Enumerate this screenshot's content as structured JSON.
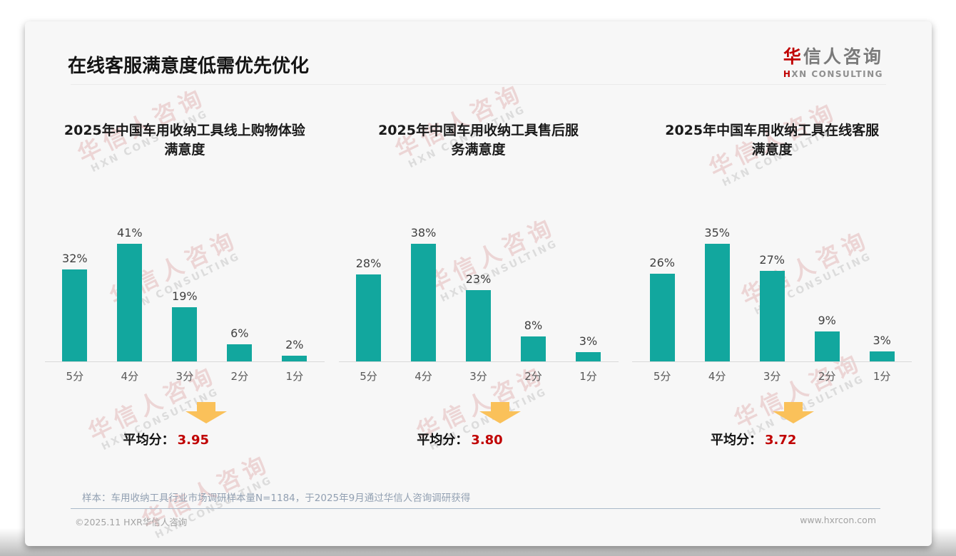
{
  "slide": {
    "title": "在线客服满意度低需优先优化",
    "logo": {
      "cn_accent": "华",
      "cn_rest": "信人咨询",
      "en_accent": "H",
      "en_rest": "XN CONSULTING"
    },
    "watermark": {
      "cn": "华信人咨询",
      "en": "HXN CONSULTING"
    },
    "avg_label": "平均分：",
    "sample_note": "样本：车用收纳工具行业市场调研样本量N=1184，于2025年9月通过华信人咨询调研获得",
    "footer_left": "©2025.11 HXR华信人咨询",
    "footer_right": "www.hxrcon.com"
  },
  "colors": {
    "bar": "#12a79e",
    "accent_red": "#c00000",
    "arrow": "#fac15a",
    "card_bg": "#f7f7f7"
  },
  "chart_data": [
    {
      "type": "bar",
      "title": "2025年中国车用收纳工具线上购物体验\n满意度",
      "categories": [
        "5分",
        "4分",
        "3分",
        "2分",
        "1分"
      ],
      "values": [
        32,
        41,
        19,
        6,
        2
      ],
      "unit": "%",
      "average": "3.95",
      "grid": false,
      "legend": false
    },
    {
      "type": "bar",
      "title": "2025年中国车用收纳工具售后服\n务满意度",
      "categories": [
        "5分",
        "4分",
        "3分",
        "2分",
        "1分"
      ],
      "values": [
        28,
        38,
        23,
        8,
        3
      ],
      "unit": "%",
      "average": "3.80",
      "grid": false,
      "legend": false
    },
    {
      "type": "bar",
      "title": "2025年中国车用收纳工具在线客服\n满意度",
      "categories": [
        "5分",
        "4分",
        "3分",
        "2分",
        "1分"
      ],
      "values": [
        26,
        35,
        27,
        9,
        3
      ],
      "unit": "%",
      "average": "3.72",
      "grid": false,
      "legend": false
    }
  ]
}
